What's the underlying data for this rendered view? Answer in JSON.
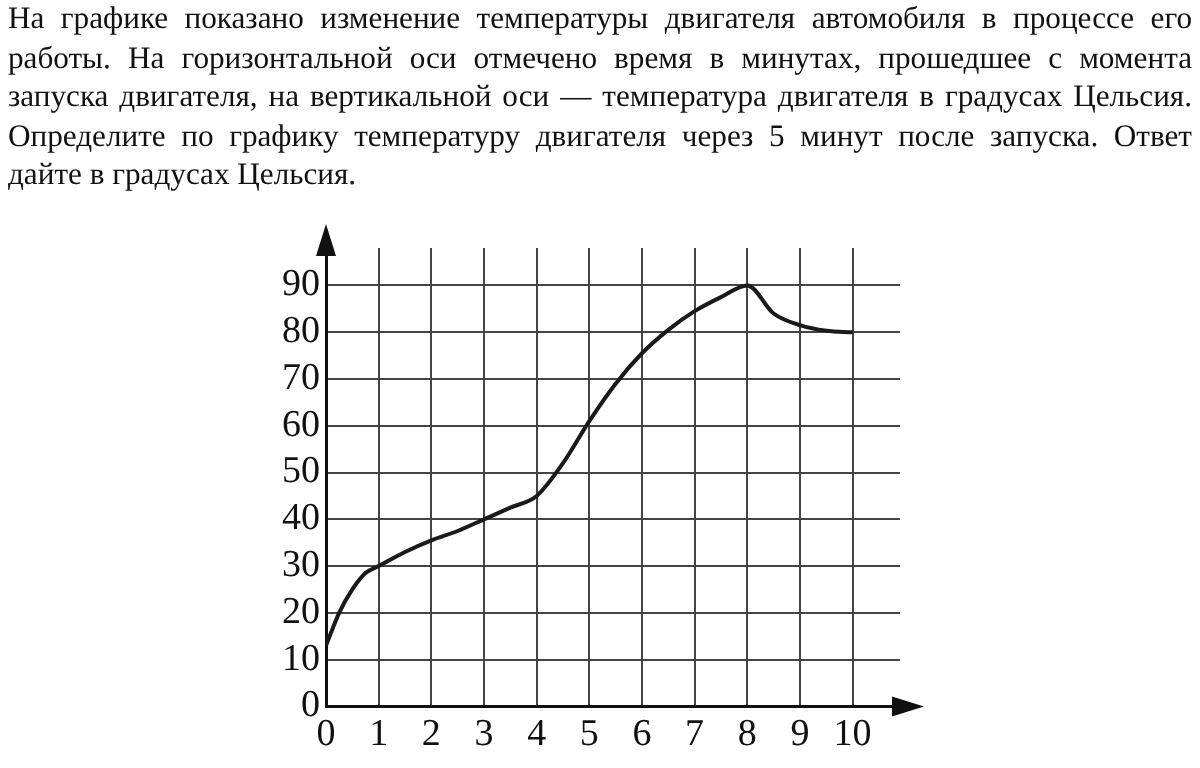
{
  "chart_data": {
    "type": "line",
    "title": "На графике показано изменение температуры двигателя автомобиля в процессе его работы. На горизонтальной оси отмечено время в минутах, прошедшее с момента запуска двигателя, на вертикальной оси — температура двигателя в градусах Цельсия. Определите по графику температуру двигателя через 5 минут после запуска. Ответ дайте в градусах Цельсия.",
    "x": [
      0,
      0.25,
      0.5,
      0.75,
      1,
      1.5,
      2,
      2.5,
      3,
      3.5,
      4,
      4.5,
      5,
      5.5,
      6,
      6.5,
      7,
      7.5,
      8,
      8.5,
      9,
      9.5,
      10
    ],
    "series": [
      {
        "color": "#1a1a1a",
        "values": [
          13,
          20,
          25,
          28.5,
          30,
          33,
          35.5,
          37.5,
          40,
          42.5,
          45,
          52,
          61,
          69,
          75.5,
          80.5,
          84.5,
          87.5,
          90,
          84,
          81.5,
          80.3,
          80
        ]
      }
    ],
    "xlim": [
      0,
      10.9
    ],
    "ylim": [
      0,
      98
    ],
    "xticks": [
      0,
      1,
      2,
      3,
      4,
      5,
      6,
      7,
      8,
      9,
      10
    ],
    "yticks": [
      0,
      10,
      20,
      30,
      40,
      50,
      60,
      70,
      80,
      90
    ],
    "grid": true,
    "legend": false,
    "marker": "none",
    "line_style": "solid"
  }
}
